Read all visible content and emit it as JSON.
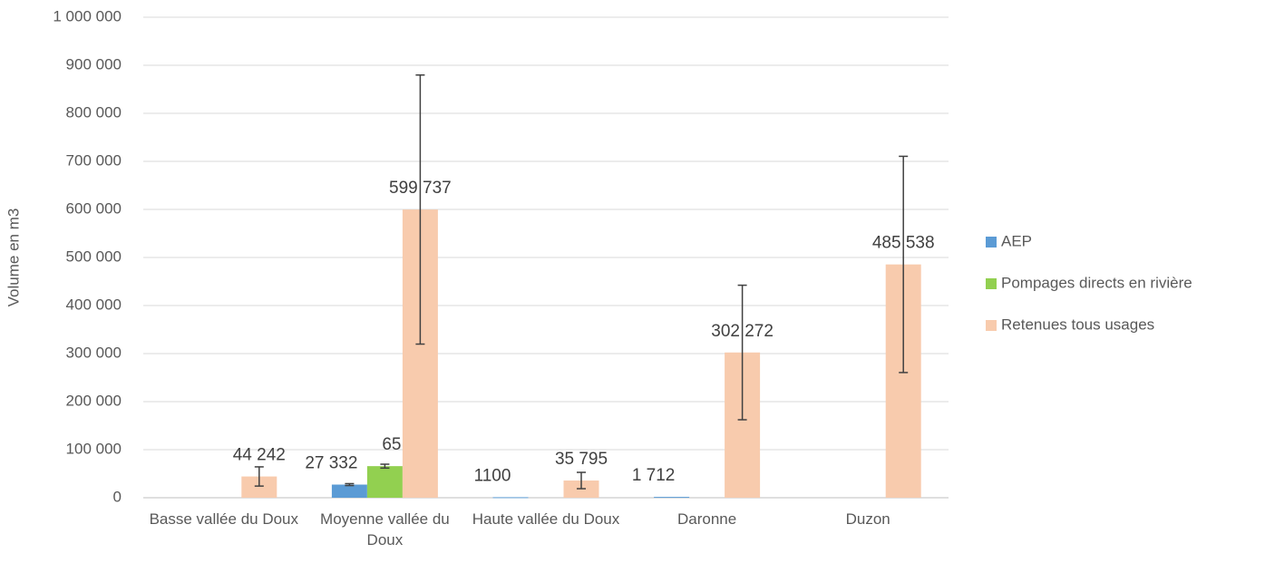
{
  "chart_data": {
    "type": "bar",
    "y_label": "Volume en m3",
    "categories": [
      "Basse vallée du Doux",
      "Moyenne vallée du Doux",
      "Haute vallée du Doux",
      "Daronne",
      "Duzon"
    ],
    "series": [
      {
        "name": "AEP",
        "color": "#5b9bd5",
        "values": [
          null,
          27332,
          1100,
          1712,
          null
        ],
        "errors": [
          null,
          2000,
          null,
          null,
          null
        ],
        "value_labels": [
          null,
          "27 332",
          "1100",
          "1 712",
          null
        ]
      },
      {
        "name": "Pompages directs en rivière",
        "color": "#92d050",
        "values": [
          null,
          65750,
          null,
          null,
          null
        ],
        "errors": [
          null,
          4000,
          null,
          null,
          null
        ],
        "value_labels": [
          null,
          "65 750",
          null,
          null,
          null
        ]
      },
      {
        "name": "Retenues tous usages",
        "color": "#f8cbad",
        "values": [
          44242,
          599737,
          35795,
          302272,
          485538
        ],
        "errors": [
          20000,
          280000,
          17000,
          140000,
          225000
        ],
        "value_labels": [
          "44 242",
          "599 737",
          "35 795",
          "302 272",
          "485 538"
        ]
      }
    ],
    "ylim": [
      0,
      1000000
    ],
    "yticks": [
      0,
      {
        "value": 100000,
        "label": "100 000"
      },
      {
        "value": 200000,
        "label": "200 000"
      },
      {
        "value": 300000,
        "label": "300 000"
      },
      {
        "value": 400000,
        "label": "400 000"
      },
      {
        "value": 500000,
        "label": "500 000"
      },
      {
        "value": 600000,
        "label": "600 000"
      },
      {
        "value": 700000,
        "label": "700 000"
      },
      {
        "value": 800000,
        "label": "800 000"
      },
      {
        "value": 900000,
        "label": "900 000"
      },
      {
        "value": 1000000,
        "label": "1 000 000"
      }
    ],
    "grid": true,
    "legend": "right"
  }
}
